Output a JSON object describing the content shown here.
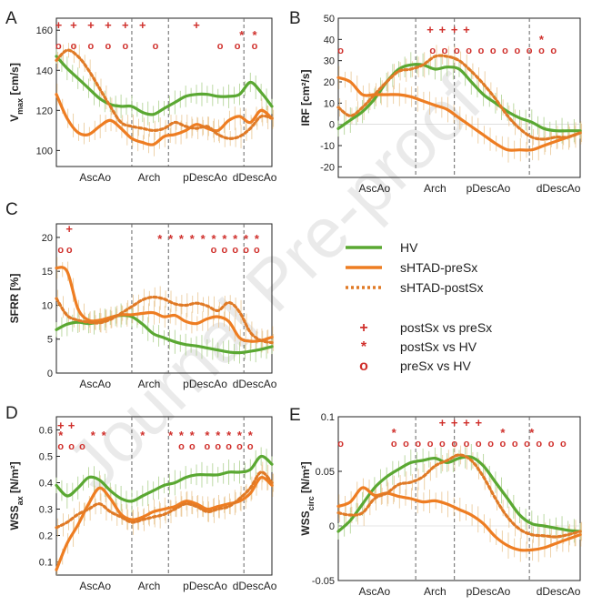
{
  "watermark": "Journal Pre-proof",
  "colors": {
    "hv": "#5aa832",
    "pre": "#ee7d22",
    "post": "#e07a26",
    "mark": "#d0302c",
    "axis": "#222222",
    "err": "#c9b36a",
    "divider": "#666666"
  },
  "legend": {
    "lines": [
      {
        "label": "HV",
        "style": "hv"
      },
      {
        "label": "sHTAD-preSx",
        "style": "pre"
      },
      {
        "label": "sHTAD-postSx",
        "style": "post"
      }
    ],
    "markers": [
      {
        "symbol": "+",
        "label": "postSx vs preSx"
      },
      {
        "symbol": "*",
        "label": "postSx vs HV"
      },
      {
        "symbol": "o",
        "label": "preSx vs HV"
      }
    ]
  },
  "chart_data": [
    {
      "id": "A",
      "panel_label": "A",
      "type": "line",
      "ylabel_main": "V",
      "ylabel_sub": "max",
      "ylabel_unit": " [cm/s]",
      "ylim": [
        92,
        166
      ],
      "yticks": [
        "100",
        "120",
        "140",
        "160"
      ],
      "ytick_values": [
        100,
        120,
        140,
        160
      ],
      "x_regions": [
        "AscAo",
        "Arch",
        "pDescAo",
        "dDescAo"
      ],
      "x": [
        0,
        5,
        10,
        15,
        20,
        25,
        30,
        35,
        40,
        45,
        50,
        55,
        60,
        65,
        70,
        75,
        80,
        85,
        90,
        95,
        100
      ],
      "series": [
        {
          "name": "HV",
          "style": "hv",
          "values": [
            147,
            141,
            136,
            131,
            126,
            123,
            122,
            122,
            119,
            118,
            121,
            124,
            127,
            128,
            128,
            127,
            127,
            128,
            134,
            129,
            122
          ]
        },
        {
          "name": "sHTAD-preSx",
          "style": "pre",
          "values": [
            128,
            116,
            109,
            108,
            112,
            115,
            111,
            106,
            104,
            103,
            107,
            108,
            110,
            113,
            111,
            110,
            115,
            117,
            114,
            120,
            116
          ]
        },
        {
          "name": "sHTAD-postSx",
          "style": "post",
          "values": [
            145,
            150,
            147,
            140,
            131,
            122,
            114,
            112,
            111,
            110,
            111,
            114,
            112,
            111,
            112,
            108,
            106,
            107,
            111,
            117,
            116
          ]
        }
      ],
      "markers": [
        {
          "symbol": "+",
          "x": [
            1,
            8,
            16,
            24,
            32,
            40,
            65
          ]
        },
        {
          "symbol": "*",
          "x": [
            86,
            92
          ]
        },
        {
          "symbol": "o",
          "x": [
            1,
            8,
            16,
            24,
            32,
            46,
            76,
            84,
            92
          ]
        }
      ]
    },
    {
      "id": "B",
      "panel_label": "B",
      "type": "line",
      "ylabel_main": "IRF",
      "ylabel_sub": "",
      "ylabel_unit": " [cm²/s]",
      "ylim": [
        -25,
        50
      ],
      "yticks": [
        "50",
        "40",
        "30",
        "20",
        "10",
        "0",
        "-10",
        "-20"
      ],
      "ytick_values": [
        50,
        40,
        30,
        20,
        10,
        0,
        -10,
        -20
      ],
      "x_regions": [
        "AscAo",
        "Arch",
        "pDescAo",
        "dDescAo"
      ],
      "x": [
        0,
        5,
        10,
        15,
        20,
        25,
        30,
        35,
        40,
        45,
        50,
        55,
        60,
        65,
        70,
        75,
        80,
        85,
        90,
        95,
        100
      ],
      "series": [
        {
          "name": "HV",
          "style": "hv",
          "values": [
            -2,
            2,
            6,
            12,
            20,
            26,
            28,
            28,
            26,
            27,
            26,
            20,
            14,
            10,
            6,
            3,
            1,
            -2,
            -3,
            -3,
            -3
          ]
        },
        {
          "name": "sHTAD-preSx",
          "style": "pre",
          "values": [
            22,
            20,
            14,
            14,
            14,
            14,
            13,
            11,
            9,
            7,
            3,
            -1,
            -5,
            -9,
            -12,
            -12,
            -12,
            -10,
            -8,
            -6,
            -4
          ]
        },
        {
          "name": "sHTAD-postSx",
          "style": "post",
          "values": [
            8,
            4,
            8,
            14,
            20,
            25,
            26,
            28,
            32,
            32,
            30,
            25,
            19,
            12,
            4,
            -2,
            -6,
            -7,
            -6,
            -6,
            -4
          ]
        }
      ],
      "markers": [
        {
          "symbol": "+",
          "x": [
            38,
            43,
            48,
            53
          ]
        },
        {
          "symbol": "*",
          "x": [
            84
          ]
        },
        {
          "symbol": "o",
          "x": [
            1,
            39,
            44,
            49,
            54,
            59,
            64,
            69,
            74,
            79,
            84,
            89
          ]
        }
      ]
    },
    {
      "id": "C",
      "panel_label": "C",
      "type": "line",
      "ylabel_main": "SFRR [%]",
      "ylabel_sub": "",
      "ylabel_unit": "",
      "ylim": [
        0,
        22
      ],
      "yticks": [
        "0",
        "5",
        "10",
        "15",
        "20"
      ],
      "ytick_values": [
        0,
        5,
        10,
        15,
        20
      ],
      "x_regions": [
        "AscAo",
        "Arch",
        "pDescAo",
        "dDescAo"
      ],
      "x": [
        0,
        5,
        10,
        15,
        20,
        25,
        30,
        35,
        40,
        45,
        50,
        55,
        60,
        65,
        70,
        75,
        80,
        85,
        90,
        95,
        100
      ],
      "series": [
        {
          "name": "HV",
          "style": "hv",
          "values": [
            6.4,
            7.2,
            7.5,
            7.3,
            7.6,
            8.2,
            8.5,
            8.3,
            7.2,
            5.8,
            5.2,
            4.6,
            4.2,
            4.0,
            3.7,
            3.4,
            3.1,
            3.0,
            3.2,
            3.5,
            3.9
          ]
        },
        {
          "name": "sHTAD-preSx",
          "style": "pre",
          "values": [
            15.5,
            15.0,
            9.5,
            7.8,
            7.8,
            8.2,
            8.6,
            8.6,
            8.8,
            8.9,
            8.3,
            8.5,
            7.6,
            7.3,
            8.0,
            8.3,
            7.6,
            5.2,
            4.7,
            4.8,
            5.3
          ]
        },
        {
          "name": "sHTAD-postSx",
          "style": "post",
          "values": [
            11.0,
            8.5,
            7.8,
            7.5,
            7.4,
            7.9,
            8.8,
            9.8,
            10.8,
            11.2,
            10.9,
            10.2,
            10.0,
            10.3,
            9.9,
            9.2,
            10.4,
            9.0,
            6.0,
            4.8,
            4.5
          ]
        }
      ],
      "markers": [
        {
          "symbol": "+",
          "x": [
            6
          ]
        },
        {
          "symbol": "*",
          "x": [
            48,
            53,
            58,
            63,
            68,
            73,
            78,
            83,
            88,
            93
          ]
        },
        {
          "symbol": "o",
          "x": [
            2,
            6,
            73,
            78,
            83,
            88,
            93
          ]
        }
      ]
    },
    {
      "id": "D",
      "panel_label": "D",
      "type": "line",
      "ylabel_main": "WSS",
      "ylabel_sub": "ax",
      "ylabel_unit": " [N/m²]",
      "ylim": [
        0.05,
        0.65
      ],
      "yticks": [
        "0.1",
        "0.2",
        "0.3",
        "0.4",
        "0.5",
        "0.6"
      ],
      "ytick_values": [
        0.1,
        0.2,
        0.3,
        0.4,
        0.5,
        0.6
      ],
      "x_regions": [
        "AscAo",
        "Arch",
        "pDescAo",
        "dDescAo"
      ],
      "x": [
        0,
        5,
        10,
        15,
        20,
        25,
        30,
        35,
        40,
        45,
        50,
        55,
        60,
        65,
        70,
        75,
        80,
        85,
        90,
        95,
        100
      ],
      "series": [
        {
          "name": "HV",
          "style": "hv",
          "values": [
            0.39,
            0.35,
            0.38,
            0.42,
            0.41,
            0.37,
            0.34,
            0.33,
            0.35,
            0.37,
            0.39,
            0.4,
            0.42,
            0.43,
            0.43,
            0.43,
            0.44,
            0.44,
            0.45,
            0.5,
            0.47
          ]
        },
        {
          "name": "sHTAD-preSx",
          "style": "pre",
          "values": [
            0.07,
            0.17,
            0.24,
            0.32,
            0.38,
            0.34,
            0.28,
            0.26,
            0.27,
            0.29,
            0.3,
            0.31,
            0.33,
            0.32,
            0.3,
            0.31,
            0.32,
            0.33,
            0.36,
            0.42,
            0.39
          ]
        },
        {
          "name": "sHTAD-postSx",
          "style": "post",
          "values": [
            0.23,
            0.25,
            0.28,
            0.3,
            0.32,
            0.29,
            0.27,
            0.25,
            0.26,
            0.27,
            0.28,
            0.3,
            0.32,
            0.31,
            0.29,
            0.3,
            0.31,
            0.34,
            0.38,
            0.44,
            0.4
          ]
        }
      ],
      "markers": [
        {
          "symbol": "+",
          "x": [
            2,
            7
          ]
        },
        {
          "symbol": "*",
          "x": [
            2,
            17,
            22,
            40,
            53,
            58,
            63,
            70,
            75,
            80,
            85,
            90
          ]
        },
        {
          "symbol": "o",
          "x": [
            2,
            7,
            12,
            58,
            63,
            70,
            75,
            80,
            85,
            90
          ]
        }
      ]
    },
    {
      "id": "E",
      "panel_label": "E",
      "type": "line",
      "ylabel_main": "WSS",
      "ylabel_sub": "circ",
      "ylabel_unit": " [N/m²]",
      "ylim": [
        -0.05,
        0.1
      ],
      "yticks": [
        "0.1",
        "0.05",
        "0",
        "-0.05"
      ],
      "ytick_values": [
        0.1,
        0.05,
        0,
        -0.05
      ],
      "x_regions": [
        "AscAo",
        "Arch",
        "pDescAo",
        "dDescAo"
      ],
      "x": [
        0,
        5,
        10,
        15,
        20,
        25,
        30,
        35,
        40,
        45,
        50,
        55,
        60,
        65,
        70,
        75,
        80,
        85,
        90,
        95,
        100
      ],
      "series": [
        {
          "name": "HV",
          "style": "hv",
          "values": [
            -0.005,
            0.005,
            0.02,
            0.035,
            0.045,
            0.052,
            0.058,
            0.06,
            0.062,
            0.058,
            0.062,
            0.063,
            0.055,
            0.04,
            0.025,
            0.01,
            0.002,
            0.0,
            -0.002,
            -0.004,
            -0.005
          ]
        },
        {
          "name": "sHTAD-preSx",
          "style": "pre",
          "values": [
            0.018,
            0.022,
            0.035,
            0.028,
            0.03,
            0.027,
            0.025,
            0.022,
            0.023,
            0.02,
            0.015,
            0.01,
            0.002,
            -0.01,
            -0.018,
            -0.022,
            -0.022,
            -0.02,
            -0.016,
            -0.012,
            -0.008
          ]
        },
        {
          "name": "sHTAD-postSx",
          "style": "post",
          "values": [
            0.012,
            0.01,
            0.012,
            0.025,
            0.03,
            0.038,
            0.04,
            0.045,
            0.055,
            0.06,
            0.065,
            0.06,
            0.045,
            0.025,
            0.008,
            -0.003,
            -0.008,
            -0.009,
            -0.01,
            -0.008,
            -0.005
          ]
        }
      ],
      "markers": [
        {
          "symbol": "+",
          "x": [
            43,
            48,
            53,
            58
          ]
        },
        {
          "symbol": "*",
          "x": [
            23,
            68,
            80
          ]
        },
        {
          "symbol": "o",
          "x": [
            1,
            23,
            28,
            33,
            38,
            43,
            48,
            53,
            58,
            63,
            68,
            73,
            78,
            83,
            88,
            93
          ]
        }
      ]
    }
  ]
}
